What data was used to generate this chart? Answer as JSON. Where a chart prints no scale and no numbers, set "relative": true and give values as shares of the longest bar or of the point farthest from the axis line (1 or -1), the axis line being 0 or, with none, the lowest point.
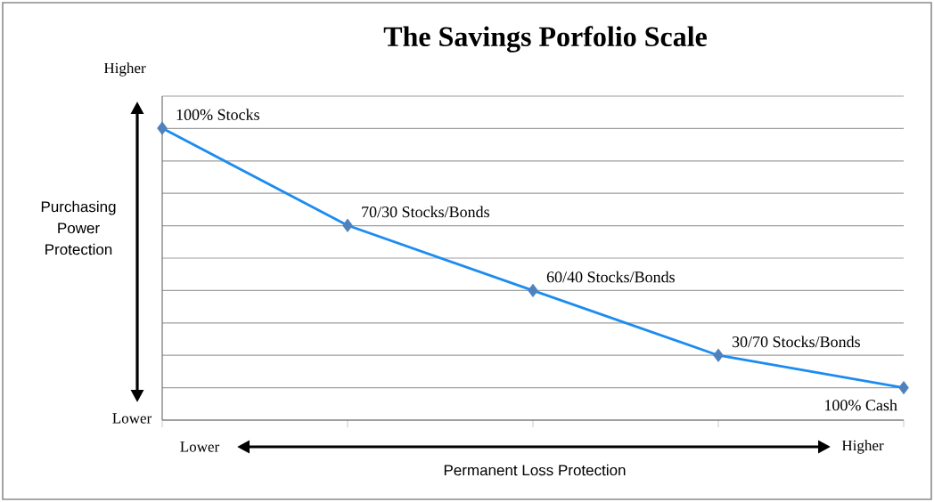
{
  "chart_data": {
    "type": "line",
    "title": "The Savings Porfolio Scale",
    "xlabel": "Permanent Loss Protection",
    "ylabel": "Purchasing Power Protection",
    "categories": [
      null,
      null,
      null,
      null,
      null
    ],
    "relative": true,
    "values": [
      1,
      0.667,
      0.444,
      0.222,
      0.111
    ],
    "color": "#1c8cf0",
    "colors": [
      "#4f81bd",
      "#4f81bd",
      "#4f81bd",
      "#4f81bd",
      "#4f81bd"
    ],
    "marker": "diamond",
    "line_style": "solid",
    "grid": "y",
    "annotations": [
      "Higher",
      "Lower",
      "Lower",
      "Higher",
      "100% Stocks",
      "70/30 Stocks/Bonds",
      "60/40 Stocks/Bonds",
      "30/70 Stocks/Bonds",
      "100% Cash"
    ]
  }
}
